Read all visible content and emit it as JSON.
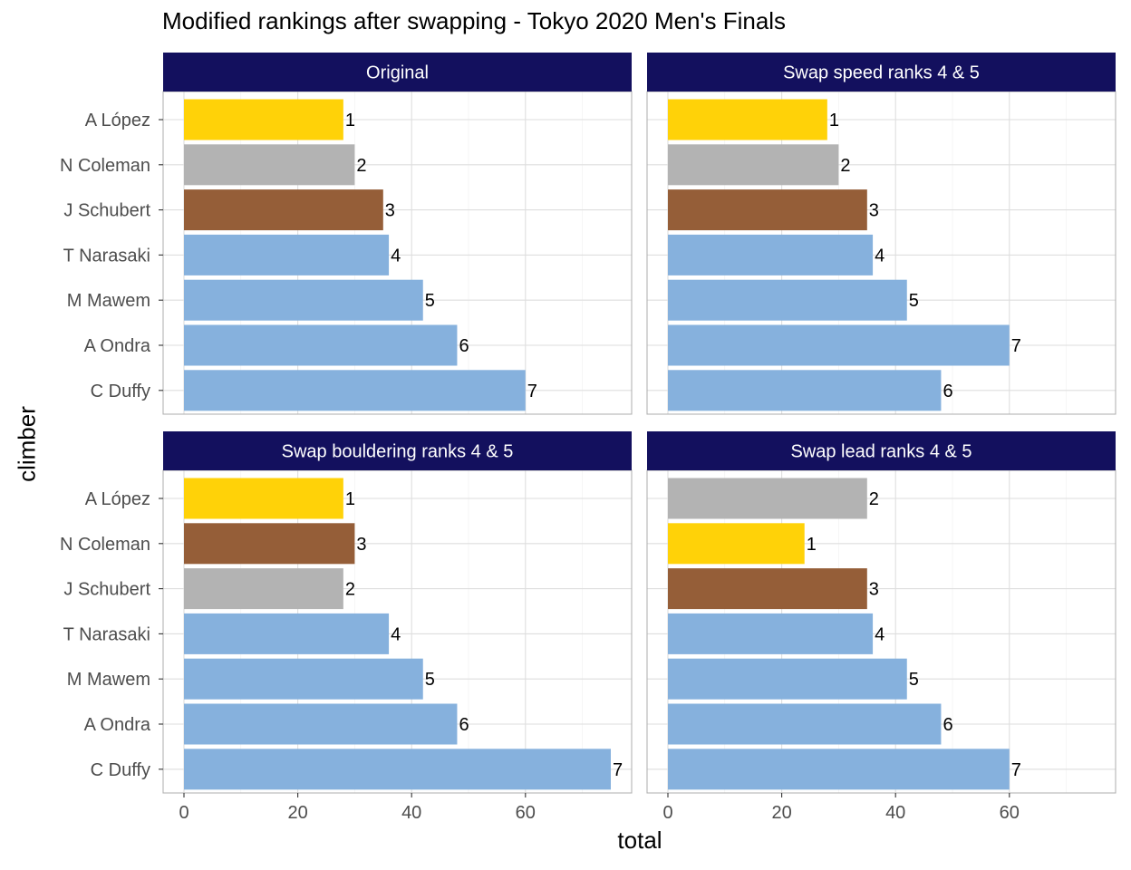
{
  "chart_data": {
    "type": "bar",
    "orientation": "horizontal",
    "title": "Modified rankings after swapping - Tokyo 2020 Men's Finals",
    "xlabel": "total",
    "ylabel": "climber",
    "xlim": [
      0,
      78
    ],
    "xticks": [
      0,
      20,
      40,
      60
    ],
    "grid": true,
    "colors": {
      "gold": "#FFD208",
      "silver": "#B3B3B3",
      "bronze": "#955E38",
      "other": "#86B1DD",
      "strip": "#13105E"
    },
    "panels": [
      {
        "name": "Original",
        "categories": [
          "A López",
          "N Coleman",
          "J Schubert",
          "T Narasaki",
          "M Mawem",
          "A Ondra",
          "C Duffy"
        ],
        "values": [
          28,
          30,
          35,
          36,
          42,
          48,
          60
        ],
        "ranks": [
          "1",
          "2",
          "3",
          "4",
          "5",
          "6",
          "7"
        ]
      },
      {
        "name": "Swap speed ranks 4 & 5",
        "categories": [
          "A López",
          "N Coleman",
          "J Schubert",
          "T Narasaki",
          "M Mawem",
          "A Ondra",
          "C Duffy"
        ],
        "values": [
          28,
          30,
          35,
          36,
          42,
          60,
          48
        ],
        "ranks": [
          "1",
          "2",
          "3",
          "4",
          "5",
          "7",
          "6"
        ]
      },
      {
        "name": "Swap bouldering ranks 4 & 5",
        "categories": [
          "A López",
          "N Coleman",
          "J Schubert",
          "T Narasaki",
          "M Mawem",
          "A Ondra",
          "C Duffy"
        ],
        "values": [
          28,
          30,
          28,
          36,
          42,
          48,
          75
        ],
        "ranks": [
          "1",
          "3",
          "2",
          "4",
          "5",
          "6",
          "7"
        ]
      },
      {
        "name": "Swap lead ranks 4 & 5",
        "categories": [
          "A López",
          "N Coleman",
          "J Schubert",
          "T Narasaki",
          "M Mawem",
          "A Ondra",
          "C Duffy"
        ],
        "values": [
          35,
          24,
          35,
          36,
          42,
          48,
          60
        ],
        "ranks": [
          "2",
          "1",
          "3",
          "4",
          "5",
          "6",
          "7"
        ]
      }
    ]
  }
}
